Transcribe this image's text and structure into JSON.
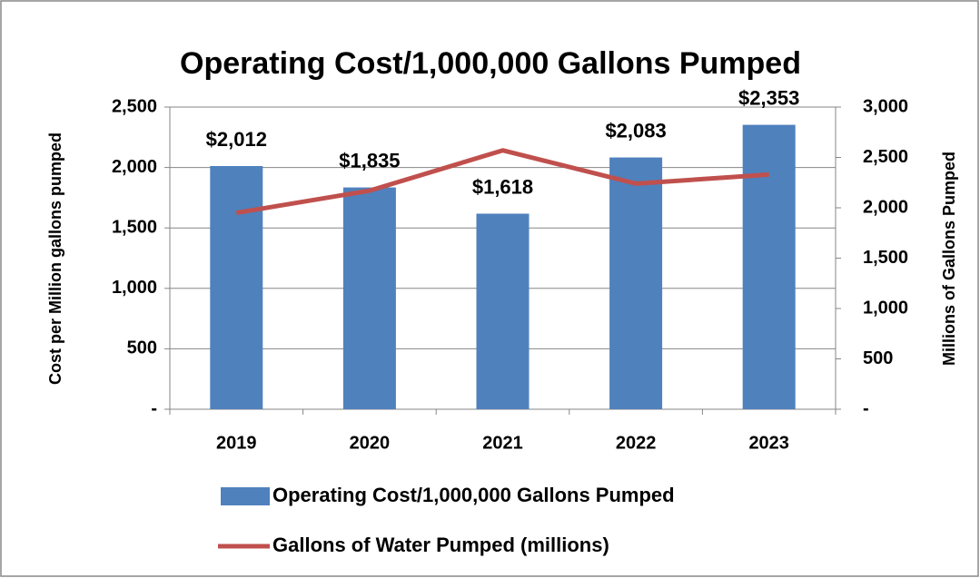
{
  "chart_data": {
    "type": "bar",
    "title": "Operating Cost/1,000,000 Gallons Pumped",
    "categories": [
      "2019",
      "2020",
      "2021",
      "2022",
      "2023"
    ],
    "series": [
      {
        "name": "Operating Cost/1,000,000 Gallons Pumped",
        "type": "bar",
        "color": "#4f81bd",
        "values": [
          2012,
          1835,
          1618,
          2083,
          2353
        ],
        "value_labels": [
          "$2,012",
          "$1,835",
          "$1,618",
          "$2,083",
          "$2,353"
        ]
      },
      {
        "name": "Gallons of Water Pumped (millions)",
        "type": "line",
        "color": "#c0504d",
        "axis": "y2",
        "values": [
          1950,
          2170,
          2570,
          2240,
          2330
        ]
      }
    ],
    "ylabel": "Cost per Million gallons pumped",
    "y2label": "Millions of Gallons Pumped",
    "ylim": [
      0,
      2500
    ],
    "yticks": [
      {
        "value": 0,
        "label": "-"
      },
      500,
      {
        "value": 1000,
        "label": "1,000"
      },
      {
        "value": 1500,
        "label": "1,500"
      },
      {
        "value": 2000,
        "label": "2,000"
      },
      {
        "value": 2500,
        "label": "2,500"
      }
    ],
    "y2lim": [
      0,
      3000
    ],
    "y2ticks": [
      {
        "value": 0,
        "label": "-"
      },
      500,
      {
        "value": 1000,
        "label": "1,000"
      },
      {
        "value": 1500,
        "label": "1,500"
      },
      {
        "value": 2000,
        "label": "2,000"
      },
      {
        "value": 2500,
        "label": "2,500"
      },
      {
        "value": 3000,
        "label": "3,000"
      }
    ],
    "grid": true,
    "legend": "bottom"
  }
}
